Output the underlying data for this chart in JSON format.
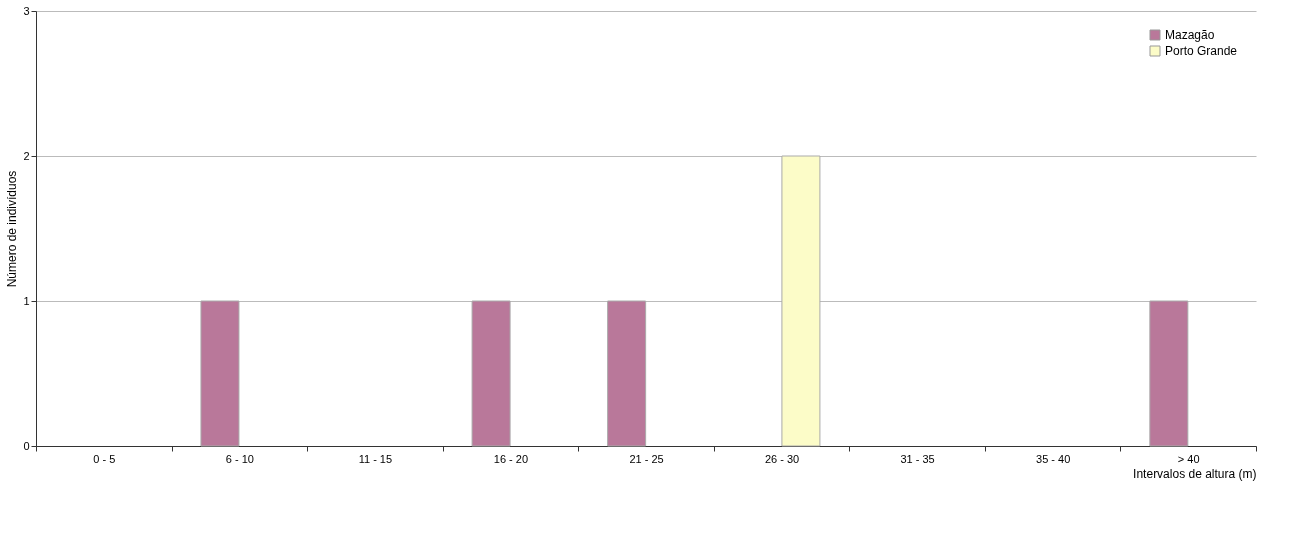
{
  "chart_data": {
    "type": "bar",
    "xlabel": "Intervalos de altura (m)",
    "ylabel": "Número de indivíduos",
    "categories": [
      "0 - 5",
      "6 - 10",
      "11 - 15",
      "16 - 20",
      "21 - 25",
      "26 - 30",
      "31 - 35",
      "35 - 40",
      "> 40"
    ],
    "series": [
      {
        "name": "Mazagão",
        "color": "#b9789a",
        "values": [
          0,
          1,
          0,
          1,
          1,
          0,
          0,
          0,
          1
        ]
      },
      {
        "name": "Porto Grande",
        "color": "#fcfcc8",
        "values": [
          0,
          0,
          0,
          0,
          0,
          2,
          0,
          0,
          0
        ]
      }
    ],
    "ylim": [
      0,
      3
    ],
    "yticks": [
      0,
      1,
      2,
      3
    ],
    "grid": "y",
    "legend": "top right"
  }
}
